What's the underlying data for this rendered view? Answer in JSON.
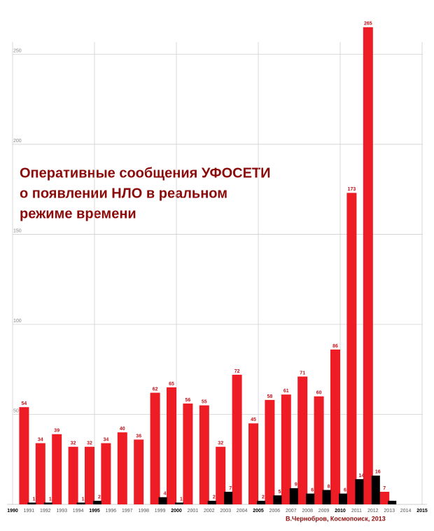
{
  "chart_data": {
    "type": "bar",
    "title_lines": [
      "Оперативные сообщения УФОСЕТИ",
      "о появлении НЛО в реальном",
      "режиме времени"
    ],
    "credit": "В.Чернобров, Космопоиск, 2013",
    "categories": [
      "1990",
      "1991",
      "1992",
      "1993",
      "1994",
      "1995",
      "1996",
      "1997",
      "1998",
      "1999",
      "2000",
      "2001",
      "2002",
      "2003",
      "2004",
      "2005",
      "2006",
      "2007",
      "2008",
      "2009",
      "2010",
      "2011",
      "2012",
      "2013",
      "2014",
      "2015"
    ],
    "series": [
      {
        "color": "#ee1c24",
        "values": [
          null,
          54,
          34,
          39,
          32,
          32,
          34,
          40,
          36,
          62,
          65,
          56,
          55,
          32,
          72,
          45,
          58,
          61,
          71,
          60,
          86,
          173,
          265,
          7,
          null,
          null
        ]
      },
      {
        "color": "#000000",
        "values": [
          null,
          1,
          1,
          null,
          1,
          2,
          null,
          null,
          null,
          4,
          1,
          null,
          2,
          7,
          null,
          2,
          5,
          9,
          6,
          8,
          6,
          14,
          16,
          2,
          null,
          null
        ],
        "value_labels": [
          null,
          "1",
          "1",
          null,
          "1",
          "2",
          null,
          null,
          null,
          "4",
          "1",
          null,
          "2",
          "7",
          null,
          "2",
          "5",
          "9",
          "6",
          "8",
          "6",
          "14",
          "16",
          null,
          null,
          null
        ]
      }
    ],
    "ylim": [
      0,
      270
    ],
    "yticks": [
      50,
      100,
      150,
      200,
      250
    ],
    "grid": true
  }
}
